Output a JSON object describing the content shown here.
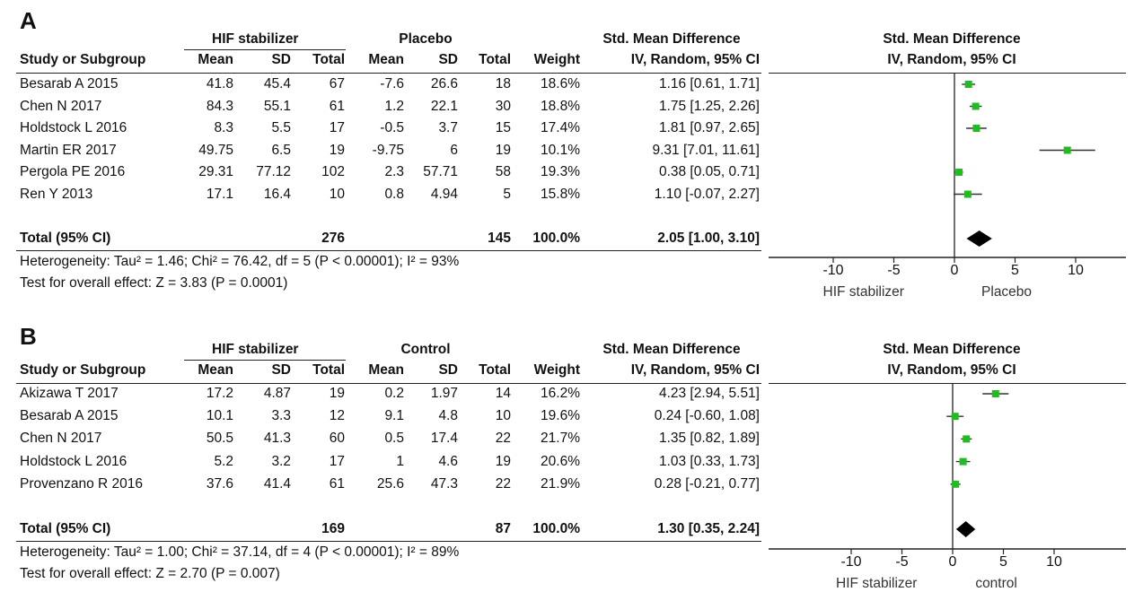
{
  "chart_data": [
    {
      "panel": "A",
      "type": "forest",
      "group_headers": {
        "experimental": "HIF stabilizer",
        "control": "Placebo",
        "effect": "Std. Mean Difference",
        "plot": "Std. Mean Difference"
      },
      "columns": {
        "study": "Study or Subgroup",
        "mean": "Mean",
        "sd": "SD",
        "total": "Total",
        "weight": "Weight",
        "effect": "IV, Random, 95% CI",
        "plot": "IV, Random, 95% CI"
      },
      "studies": [
        {
          "name": "Besarab A 2015",
          "e_mean": "41.8",
          "e_sd": "45.4",
          "e_total": "67",
          "c_mean": "-7.6",
          "c_sd": "26.6",
          "c_total": "18",
          "weight": "18.6%",
          "ci_text": "1.16 [0.61, 1.71]",
          "est": 1.16,
          "lo": 0.61,
          "hi": 1.71
        },
        {
          "name": "Chen N 2017",
          "e_mean": "84.3",
          "e_sd": "55.1",
          "e_total": "61",
          "c_mean": "1.2",
          "c_sd": "22.1",
          "c_total": "30",
          "weight": "18.8%",
          "ci_text": "1.75 [1.25, 2.26]",
          "est": 1.75,
          "lo": 1.25,
          "hi": 2.26
        },
        {
          "name": "Holdstock L  2016",
          "e_mean": "8.3",
          "e_sd": "5.5",
          "e_total": "17",
          "c_mean": "-0.5",
          "c_sd": "3.7",
          "c_total": "15",
          "weight": "17.4%",
          "ci_text": "1.81 [0.97, 2.65]",
          "est": 1.81,
          "lo": 0.97,
          "hi": 2.65
        },
        {
          "name": "Martin ER  2017",
          "e_mean": "49.75",
          "e_sd": "6.5",
          "e_total": "19",
          "c_mean": "-9.75",
          "c_sd": "6",
          "c_total": "19",
          "weight": "10.1%",
          "ci_text": "9.31 [7.01, 11.61]",
          "est": 9.31,
          "lo": 7.01,
          "hi": 11.61
        },
        {
          "name": "Pergola PE  2016",
          "e_mean": "29.31",
          "e_sd": "77.12",
          "e_total": "102",
          "c_mean": "2.3",
          "c_sd": "57.71",
          "c_total": "58",
          "weight": "19.3%",
          "ci_text": "0.38 [0.05, 0.71]",
          "est": 0.38,
          "lo": 0.05,
          "hi": 0.71
        },
        {
          "name": "Ren Y 2013",
          "e_mean": "17.1",
          "e_sd": "16.4",
          "e_total": "10",
          "c_mean": "0.8",
          "c_sd": "4.94",
          "c_total": "5",
          "weight": "15.8%",
          "ci_text": "1.10 [-0.07, 2.27]",
          "est": 1.1,
          "lo": -0.07,
          "hi": 2.27
        }
      ],
      "total": {
        "label": "Total (95% CI)",
        "e_total": "276",
        "c_total": "145",
        "weight": "100.0%",
        "ci_text": "2.05 [1.00, 3.10]",
        "est": 2.05,
        "lo": 1.0,
        "hi": 3.1
      },
      "heterogeneity": "Heterogeneity: Tau² = 1.46; Chi² = 76.42, df = 5 (P < 0.00001); I² = 93%",
      "overall_effect": "Test for overall effect: Z = 3.83 (P = 0.0001)",
      "axis": {
        "ticks": [
          -10,
          -5,
          0,
          5,
          10
        ],
        "tick_labels": [
          "-10",
          "-5",
          "0",
          "5",
          "10"
        ],
        "range": [
          -15,
          15
        ],
        "left_label": "HIF stabilizer",
        "right_label": "Placebo"
      }
    },
    {
      "panel": "B",
      "type": "forest",
      "group_headers": {
        "experimental": "HIF stabilizer",
        "control": "Control",
        "effect": "Std. Mean Difference",
        "plot": "Std. Mean Difference"
      },
      "columns": {
        "study": "Study or Subgroup",
        "mean": "Mean",
        "sd": "SD",
        "total": "Total",
        "weight": "Weight",
        "effect": "IV, Random, 95% CI",
        "plot": "IV, Random, 95% CI"
      },
      "studies": [
        {
          "name": "Akizawa T 2017",
          "e_mean": "17.2",
          "e_sd": "4.87",
          "e_total": "19",
          "c_mean": "0.2",
          "c_sd": "1.97",
          "c_total": "14",
          "weight": "16.2%",
          "ci_text": "4.23 [2.94, 5.51]",
          "est": 4.23,
          "lo": 2.94,
          "hi": 5.51
        },
        {
          "name": "Besarab A 2015",
          "e_mean": "10.1",
          "e_sd": "3.3",
          "e_total": "12",
          "c_mean": "9.1",
          "c_sd": "4.8",
          "c_total": "10",
          "weight": "19.6%",
          "ci_text": "0.24 [-0.60, 1.08]",
          "est": 0.24,
          "lo": -0.6,
          "hi": 1.08
        },
        {
          "name": "Chen N 2017",
          "e_mean": "50.5",
          "e_sd": "41.3",
          "e_total": "60",
          "c_mean": "0.5",
          "c_sd": "17.4",
          "c_total": "22",
          "weight": "21.7%",
          "ci_text": "1.35 [0.82, 1.89]",
          "est": 1.35,
          "lo": 0.82,
          "hi": 1.89
        },
        {
          "name": "Holdstock L  2016",
          "e_mean": "5.2",
          "e_sd": "3.2",
          "e_total": "17",
          "c_mean": "1",
          "c_sd": "4.6",
          "c_total": "19",
          "weight": "20.6%",
          "ci_text": "1.03 [0.33, 1.73]",
          "est": 1.03,
          "lo": 0.33,
          "hi": 1.73
        },
        {
          "name": "Provenzano R 2016",
          "e_mean": "37.6",
          "e_sd": "41.4",
          "e_total": "61",
          "c_mean": "25.6",
          "c_sd": "47.3",
          "c_total": "22",
          "weight": "21.9%",
          "ci_text": "0.28 [-0.21, 0.77]",
          "est": 0.28,
          "lo": -0.21,
          "hi": 0.77
        }
      ],
      "total": {
        "label": "Total (95% CI)",
        "e_total": "169",
        "c_total": "87",
        "weight": "100.0%",
        "ci_text": "1.30 [0.35, 2.24]",
        "est": 1.3,
        "lo": 0.35,
        "hi": 2.24
      },
      "heterogeneity": "Heterogeneity: Tau² = 1.00; Chi² = 37.14, df = 4 (P < 0.00001); I² = 89%",
      "overall_effect": "Test for overall effect: Z = 2.70 (P = 0.007)",
      "axis": {
        "ticks": [
          -10,
          -5,
          0,
          5,
          10
        ],
        "tick_labels": [
          "-10",
          "-5",
          "0",
          "5",
          "10"
        ],
        "range": [
          -15,
          15
        ],
        "left_label": "HIF stabilizer",
        "right_label": "control"
      }
    }
  ],
  "colors": {
    "marker": "#22bb22",
    "diamond": "#000000",
    "line": "#222222"
  }
}
